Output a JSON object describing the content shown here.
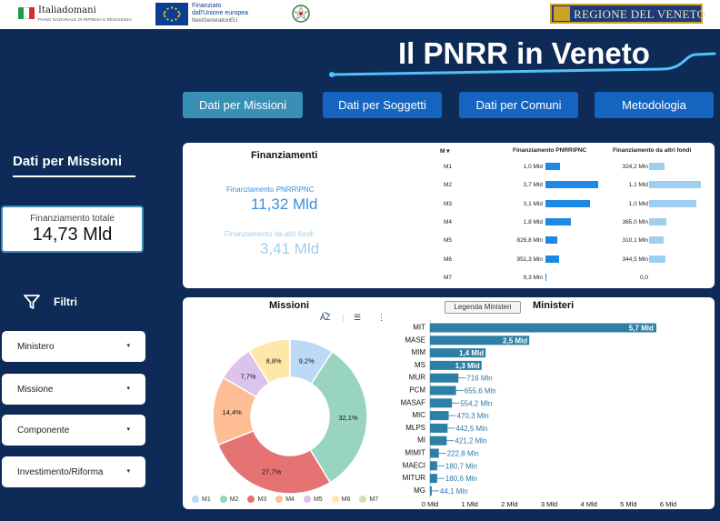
{
  "header": {
    "italiadomani": "Italiadomani",
    "italiadomani_sub": "PIANO NAZIONALE DI RIPRESA E RESILIENZA",
    "eu_line1": "Finanziato",
    "eu_line2": "dall'Unione europea",
    "eu_line3": "NextGenerationEU",
    "veneto": "REGIONE DEL VENETO",
    "title": "Il PNRR in Veneto"
  },
  "nav": {
    "missioni": "Dati per Missioni",
    "soggetti": "Dati per Soggetti",
    "comuni": "Dati per Comuni",
    "metodologia": "Metodologia"
  },
  "sidebar": {
    "title": "Dati per Missioni",
    "total_label": "Finanziamento totale",
    "total_value": "14,73 Mld",
    "filters_label": "Filtri",
    "filters": [
      "Ministero",
      "Missione",
      "Componente",
      "Investimento/Riforma"
    ]
  },
  "finanziamenti": {
    "title": "Finanziamenti",
    "pnrr_label": "Finanziamento PNRR\\PNC",
    "pnrr_value": "11,32 Mld",
    "altri_label": "Finanziamento da altri fondi",
    "altri_value": "3,41 Mld",
    "table": {
      "col_m": "M",
      "col_pnrr": "Finanziamento PNRR\\PNC",
      "col_altri": "Finanziamento da altri fondi",
      "rows": [
        {
          "m": "M1",
          "pnrr": "1,0 Mld",
          "pnrr_v": 1.0,
          "altri": "324,2 Mln",
          "altri_v": 0.324
        },
        {
          "m": "M2",
          "pnrr": "3,7 Mld",
          "pnrr_v": 3.7,
          "altri": "1,1 Mld",
          "altri_v": 1.1
        },
        {
          "m": "M3",
          "pnrr": "3,1 Mld",
          "pnrr_v": 3.1,
          "altri": "1,0 Mld",
          "altri_v": 1.0
        },
        {
          "m": "M4",
          "pnrr": "1,8 Mld",
          "pnrr_v": 1.8,
          "altri": "365,0 Mln",
          "altri_v": 0.365
        },
        {
          "m": "M5",
          "pnrr": "826,8 Mln",
          "pnrr_v": 0.827,
          "altri": "310,1 Mln",
          "altri_v": 0.31
        },
        {
          "m": "M6",
          "pnrr": "951,3 Mln",
          "pnrr_v": 0.951,
          "altri": "344,5 Mln",
          "altri_v": 0.345
        },
        {
          "m": "M7",
          "pnrr": "9,3 Mln",
          "pnrr_v": 0.0093,
          "altri": "0,0",
          "altri_v": 0
        }
      ]
    }
  },
  "missioni": {
    "title": "Missioni",
    "legend_button": "Legenda Ministeri"
  },
  "ministeri": {
    "title": "Ministeri"
  },
  "chart_data": [
    {
      "type": "pie",
      "title": "Missioni",
      "categories": [
        "M1",
        "M2",
        "M3",
        "M4",
        "M5",
        "M6",
        "M7"
      ],
      "values": [
        9.2,
        32.1,
        27.7,
        14.4,
        7.7,
        8.8,
        0.1
      ],
      "labels": [
        "9,2%",
        "32,1%",
        "27,7%",
        "14,4%",
        "7,7%",
        "8,8%",
        ""
      ],
      "colors": [
        "#bcd9f5",
        "#98d4c0",
        "#e57373",
        "#ffbd96",
        "#dcc3ec",
        "#ffe7a8",
        "#c9e3b3"
      ],
      "legend": "bottom"
    },
    {
      "type": "bar",
      "title": "Ministeri",
      "orientation": "horizontal",
      "categories": [
        "MIT",
        "MASE",
        "MIM",
        "MS",
        "MUR",
        "PCM",
        "MASAF",
        "MIC",
        "MLPS",
        "MI",
        "MIMIT",
        "MAECI",
        "MITUR",
        "MG"
      ],
      "values": [
        5.7,
        2.5,
        1.4,
        1.3,
        0.716,
        0.6556,
        0.5542,
        0.4703,
        0.4425,
        0.4212,
        0.2228,
        0.1807,
        0.1806,
        0.0441
      ],
      "labels": [
        "5,7 Mld",
        "2,5 Mld",
        "1,4 Mld",
        "1,3 Mld",
        "716 Mln",
        "655,6 Mln",
        "554,2 Mln",
        "470,3 Mln",
        "442,5 Mln",
        "421,2 Mln",
        "222,8 Mln",
        "180,7 Mln",
        "180,6 Mln",
        "44,1 Mln"
      ],
      "xlim": [
        0,
        6
      ],
      "xticks": [
        "0 Mld",
        "1 Mld",
        "2 Mld",
        "3 Mld",
        "4 Mld",
        "5 Mld",
        "6 Mld"
      ],
      "color": "#2e7fa6"
    }
  ]
}
